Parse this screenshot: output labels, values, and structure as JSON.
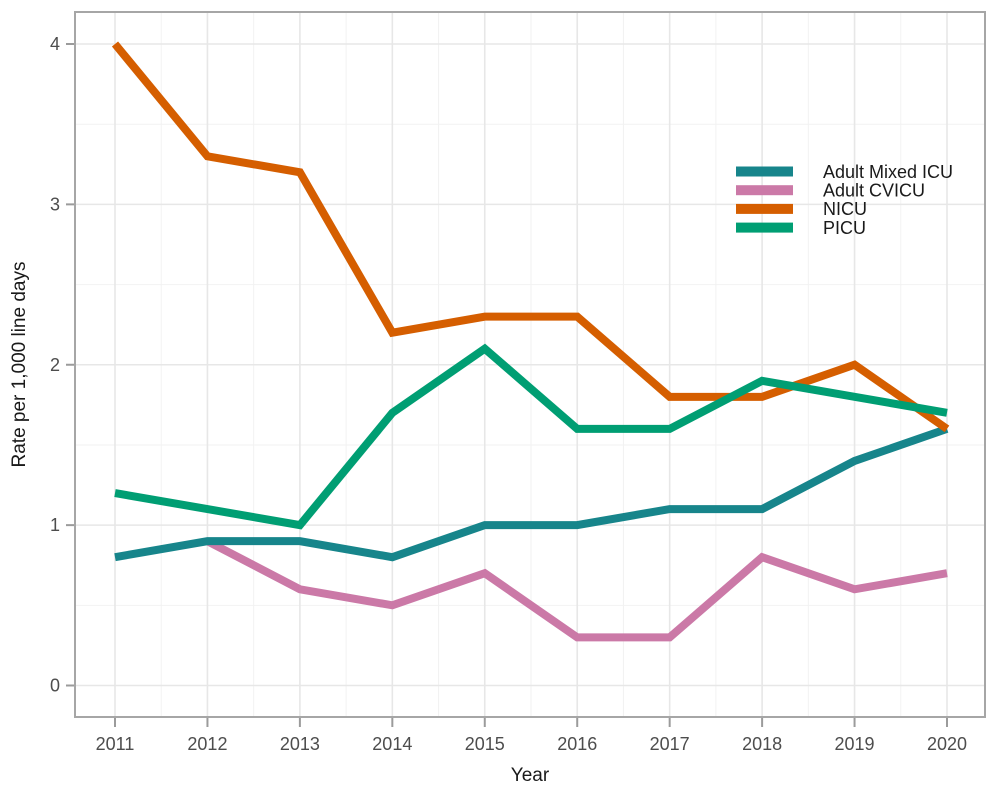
{
  "chart_data": {
    "type": "line",
    "title": "",
    "xlabel": "Year",
    "ylabel": "Rate per 1,000 line days",
    "x": [
      2011,
      2012,
      2013,
      2014,
      2015,
      2016,
      2017,
      2018,
      2019,
      2020
    ],
    "x_tick_labels": [
      "2011",
      "2012",
      "2013",
      "2014",
      "2015",
      "2016",
      "2017",
      "2018",
      "2019",
      "2020"
    ],
    "y_tick_labels": [
      "0",
      "1",
      "2",
      "3",
      "4"
    ],
    "yticks": [
      0,
      1,
      2,
      3,
      4
    ],
    "ylim": [
      -0.2,
      4.2
    ],
    "grid": "major and minor, light gray on white, gray panel border",
    "legend_position": "inside top-right",
    "legend_order": [
      "Adult Mixed ICU",
      "Adult CVICU",
      "NICU",
      "PICU"
    ],
    "series": [
      {
        "name": "Adult Mixed ICU",
        "color": "#17858B",
        "values": [
          0.8,
          0.9,
          0.9,
          0.8,
          1.0,
          1.0,
          1.1,
          1.1,
          1.4,
          1.6
        ]
      },
      {
        "name": "Adult CVICU",
        "color": "#CB79A7",
        "values": [
          null,
          0.9,
          0.6,
          0.5,
          0.7,
          0.3,
          0.3,
          0.8,
          0.6,
          0.7
        ]
      },
      {
        "name": "NICU",
        "color": "#D55E00",
        "values": [
          4.0,
          3.3,
          3.2,
          2.2,
          2.3,
          2.3,
          1.8,
          1.8,
          2.0,
          1.6
        ]
      },
      {
        "name": "PICU",
        "color": "#009E73",
        "values": [
          1.2,
          1.1,
          1.0,
          1.7,
          2.1,
          1.6,
          1.6,
          1.9,
          1.8,
          1.7
        ]
      }
    ],
    "colors": {
      "background": "#FFFFFF",
      "grid_major": "#E7E7E7",
      "grid_minor": "#F2F2F2",
      "panel_border": "#A6A6A6",
      "tick_mark": "#9B9B9B",
      "tick_label": "#4D4D4D",
      "axis_title": "#1A1A1A",
      "legend_text": "#1A1A1A"
    }
  }
}
